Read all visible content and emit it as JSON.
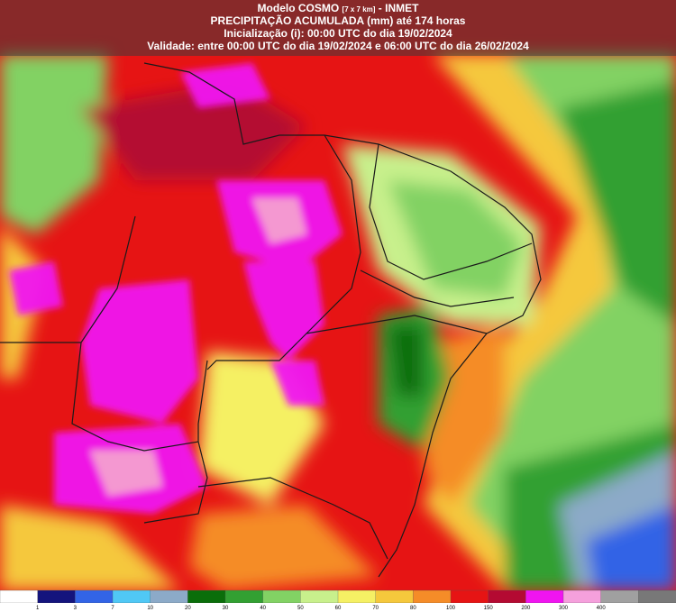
{
  "header": {
    "title_model": "Modelo COSMO",
    "title_resolution": "[7 x 7 km]",
    "title_institute": "- INMET",
    "product": "PRECIPITAÇÃO ACUMULADA (mm) até 174 horas",
    "initialization": "Inicialização (i): 00:00 UTC do dia 19/02/2024",
    "validity": "Validade: entre 00:00 UTC do dia 19/02/2024 e 06:00 UTC do dia 26/02/2024"
  },
  "legend": {
    "colors": [
      "#ffffff",
      "#14147d",
      "#3264e6",
      "#50c8f5",
      "#8caac8",
      "#0a6e0a",
      "#32a032",
      "#82d264",
      "#c8f08c",
      "#f5f064",
      "#f5c83c",
      "#f58c28",
      "#e61414",
      "#b40a32",
      "#f014f0",
      "#f5a0dc",
      "#a0a0a0",
      "#787878"
    ],
    "labels": [
      "1",
      "3",
      "7",
      "10",
      "20",
      "30",
      "40",
      "50",
      "60",
      "70",
      "80",
      "100",
      "150",
      "200",
      "300",
      "400"
    ]
  }
}
